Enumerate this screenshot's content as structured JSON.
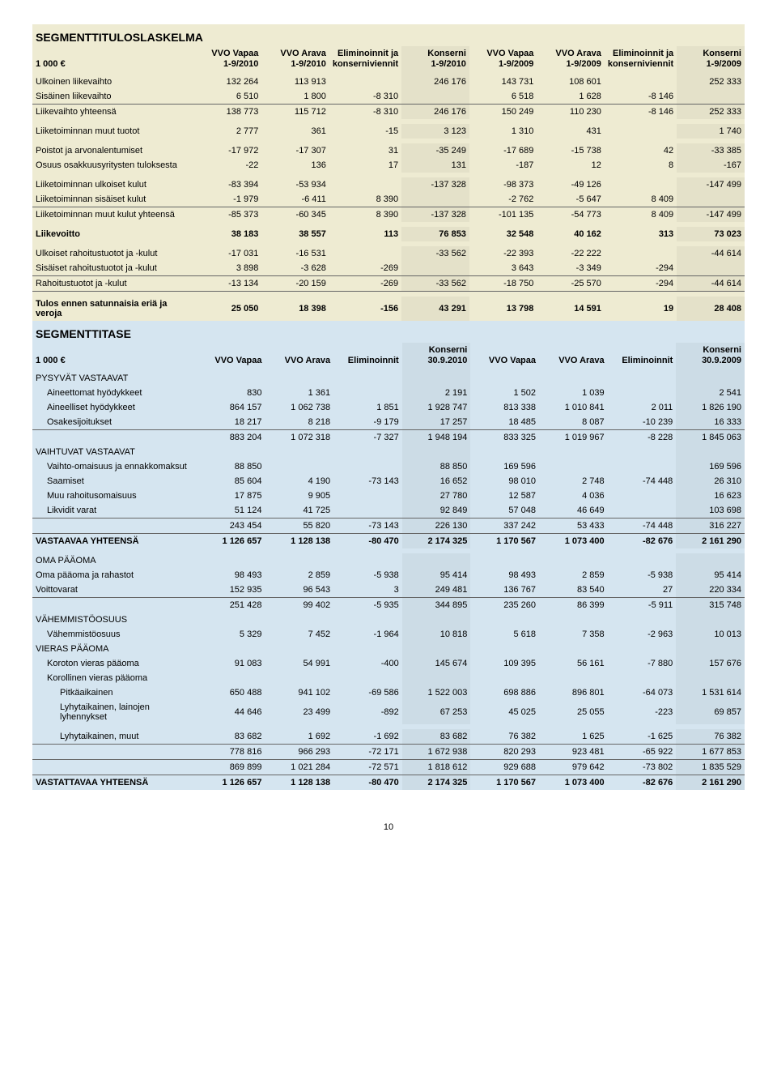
{
  "pageNumber": "10",
  "section1": {
    "title": "SEGMENTTITULOSLASKELMA",
    "unit": "1 000 €",
    "headers": [
      "VVO Vapaa\n1-9/2010",
      "VVO Arava\n1-9/2010",
      "Eliminoinnit ja\nkonserniviennit",
      "Konserni\n1-9/2010",
      "VVO Vapaa\n1-9/2009",
      "VVO Arava\n1-9/2009",
      "Eliminoinnit ja\nkonserniviennit",
      "Konserni\n1-9/2009"
    ],
    "rows": [
      {
        "label": "Ulkoinen liikevaihto",
        "cells": [
          "132 264",
          "113 913",
          "",
          "246 176",
          "143 731",
          "108 601",
          "",
          "252 333"
        ]
      },
      {
        "label": "Sisäinen liikevaihto",
        "cells": [
          "6 510",
          "1 800",
          "-8 310",
          "",
          "6 518",
          "1 628",
          "-8 146",
          ""
        ],
        "sep": true
      },
      {
        "label": "Liikevaihto yhteensä",
        "cells": [
          "138 773",
          "115 712",
          "-8 310",
          "246 176",
          "150 249",
          "110 230",
          "-8 146",
          "252 333"
        ]
      },
      {
        "space": true
      },
      {
        "label": "Liiketoiminnan muut tuotot",
        "cells": [
          "2 777",
          "361",
          "-15",
          "3 123",
          "1 310",
          "431",
          "",
          "1 740"
        ]
      },
      {
        "space": true
      },
      {
        "label": "Poistot ja arvonalentumiset",
        "cells": [
          "-17 972",
          "-17 307",
          "31",
          "-35 249",
          "-17 689",
          "-15 738",
          "42",
          "-33 385"
        ]
      },
      {
        "label": "Osuus osakkuusyritysten tuloksesta",
        "cells": [
          "-22",
          "136",
          "17",
          "131",
          "-187",
          "12",
          "8",
          "-167"
        ]
      },
      {
        "space": true
      },
      {
        "label": "Liiketoiminnan ulkoiset kulut",
        "cells": [
          "-83 394",
          "-53 934",
          "",
          "-137 328",
          "-98 373",
          "-49 126",
          "",
          "-147 499"
        ]
      },
      {
        "label": "Liiketoiminnan sisäiset kulut",
        "cells": [
          "-1 979",
          "-6 411",
          "8 390",
          "",
          "-2 762",
          "-5 647",
          "8 409",
          ""
        ],
        "sep": true
      },
      {
        "label": "Liiketoiminnan muut kulut yhteensä",
        "cells": [
          "-85 373",
          "-60 345",
          "8 390",
          "-137 328",
          "-101 135",
          "-54 773",
          "8 409",
          "-147 499"
        ]
      },
      {
        "space": true
      },
      {
        "label": "Liikevoitto",
        "cells": [
          "38 183",
          "38 557",
          "113",
          "76 853",
          "32 548",
          "40 162",
          "313",
          "73 023"
        ],
        "bold": true
      },
      {
        "space": true
      },
      {
        "label": "Ulkoiset rahoitustuotot ja -kulut",
        "cells": [
          "-17 031",
          "-16 531",
          "",
          "-33 562",
          "-22 393",
          "-22 222",
          "",
          "-44 614"
        ]
      },
      {
        "label": "Sisäiset rahoitustuotot ja -kulut",
        "cells": [
          "3 898",
          "-3 628",
          "-269",
          "",
          "3 643",
          "-3 349",
          "-294",
          ""
        ],
        "sep": true
      },
      {
        "label": "Rahoitustuotot ja -kulut",
        "cells": [
          "-13 134",
          "-20 159",
          "-269",
          "-33 562",
          "-18 750",
          "-25 570",
          "-294",
          "-44 614"
        ],
        "sep": true
      },
      {
        "space": true
      },
      {
        "label": "Tulos ennen satunnaisia eriä ja veroja",
        "cells": [
          "25 050",
          "18 398",
          "-156",
          "43 291",
          "13 798",
          "14 591",
          "19",
          "28 408"
        ],
        "bold": true
      }
    ]
  },
  "section2": {
    "title": "SEGMENTTITASE",
    "unit": "1 000 €",
    "headers": [
      "VVO Vapaa",
      "VVO Arava",
      "Eliminoinnit",
      "Konserni\n30.9.2010",
      "VVO Vapaa",
      "VVO Arava",
      "Eliminoinnit",
      "Konserni\n30.9.2009"
    ],
    "rows": [
      {
        "label": "PYSYVÄT VASTAAVAT",
        "group": true
      },
      {
        "label": "Aineettomat hyödykkeet",
        "cells": [
          "830",
          "1 361",
          "",
          "2 191",
          "1 502",
          "1 039",
          "",
          "2 541"
        ],
        "indent": true
      },
      {
        "label": "Aineelliset hyödykkeet",
        "cells": [
          "864 157",
          "1 062 738",
          "1 851",
          "1 928 747",
          "813 338",
          "1 010 841",
          "2 011",
          "1 826 190"
        ],
        "indent": true
      },
      {
        "label": "Osakesijoitukset",
        "cells": [
          "18 217",
          "8 218",
          "-9 179",
          "17 257",
          "18 485",
          "8 087",
          "-10 239",
          "16 333"
        ],
        "indent": true,
        "sep": true
      },
      {
        "label": "",
        "cells": [
          "883 204",
          "1 072 318",
          "-7 327",
          "1 948 194",
          "833 325",
          "1 019 967",
          "-8 228",
          "1 845 063"
        ]
      },
      {
        "label": "VAIHTUVAT VASTAAVAT",
        "group": true
      },
      {
        "label": "Vaihto-omaisuus ja ennakkomaksut",
        "cells": [
          "88 850",
          "",
          "",
          "88 850",
          "169 596",
          "",
          "",
          "169 596"
        ],
        "indent": true
      },
      {
        "label": "Saamiset",
        "cells": [
          "85 604",
          "4 190",
          "-73 143",
          "16 652",
          "98 010",
          "2 748",
          "-74 448",
          "26 310"
        ],
        "indent": true
      },
      {
        "label": "Muu rahoitusomaisuus",
        "cells": [
          "17 875",
          "9 905",
          "",
          "27 780",
          "12 587",
          "4 036",
          "",
          "16 623"
        ],
        "indent": true
      },
      {
        "label": "Likvidit varat",
        "cells": [
          "51 124",
          "41 725",
          "",
          "92 849",
          "57 048",
          "46 649",
          "",
          "103 698"
        ],
        "indent": true,
        "sep": true
      },
      {
        "label": "",
        "cells": [
          "243 454",
          "55 820",
          "-73 143",
          "226 130",
          "337 242",
          "53 433",
          "-74 448",
          "316 227"
        ],
        "sep": true
      },
      {
        "label": "VASTAAVAA YHTEENSÄ",
        "cells": [
          "1 126 657",
          "1 128 138",
          "-80 470",
          "2 174 325",
          "1 170 567",
          "1 073 400",
          "-82 676",
          "2 161 290"
        ],
        "bold": true
      },
      {
        "space": true
      },
      {
        "label": "OMA PÄÄOMA",
        "group": true
      },
      {
        "label": "Oma pääoma ja rahastot",
        "cells": [
          "98 493",
          "2 859",
          "-5 938",
          "95 414",
          "98 493",
          "2 859",
          "-5 938",
          "95 414"
        ]
      },
      {
        "label": "Voittovarat",
        "cells": [
          "152 935",
          "96 543",
          "3",
          "249 481",
          "136 767",
          "83 540",
          "27",
          "220 334"
        ],
        "sep": true
      },
      {
        "label": "",
        "cells": [
          "251 428",
          "99 402",
          "-5 935",
          "344 895",
          "235 260",
          "86 399",
          "-5 911",
          "315 748"
        ]
      },
      {
        "label": "VÄHEMMISTÖOSUUS",
        "group": true
      },
      {
        "label": "Vähemmistöosuus",
        "cells": [
          "5 329",
          "7 452",
          "-1 964",
          "10 818",
          "5 618",
          "7 358",
          "-2 963",
          "10 013"
        ],
        "indent": true
      },
      {
        "label": "VIERAS PÄÄOMA",
        "group": true
      },
      {
        "label": "Koroton vieras pääoma",
        "cells": [
          "91 083",
          "54 991",
          "-400",
          "145 674",
          "109 395",
          "56 161",
          "-7 880",
          "157 676"
        ],
        "indent": true
      },
      {
        "label": "Korollinen vieras pääoma",
        "cells": [
          "",
          "",
          "",
          "",
          "",
          "",
          "",
          ""
        ],
        "indent": true
      },
      {
        "label": "Pitkäaikainen",
        "cells": [
          "650 488",
          "941 102",
          "-69 586",
          "1 522 003",
          "698 886",
          "896 801",
          "-64 073",
          "1 531 614"
        ],
        "indent": true,
        "indent2": true
      },
      {
        "label": "Lyhytaikainen, lainojen lyhennykset",
        "cells": [
          "44 646",
          "23 499",
          "-892",
          "67 253",
          "45 025",
          "25 055",
          "-223",
          "69 857"
        ],
        "indent": true,
        "indent2": true
      },
      {
        "space": true
      },
      {
        "label": "Lyhytaikainen, muut",
        "cells": [
          "83 682",
          "1 692",
          "-1 692",
          "83 682",
          "76 382",
          "1 625",
          "-1 625",
          "76 382"
        ],
        "indent": true,
        "indent2": true,
        "sep": true
      },
      {
        "label": "",
        "cells": [
          "778 816",
          "966 293",
          "-72 171",
          "1 672 938",
          "820 293",
          "923 481",
          "-65 922",
          "1 677 853"
        ],
        "sep": true
      },
      {
        "label": "",
        "cells": [
          "869 899",
          "1 021 284",
          "-72 571",
          "1 818 612",
          "929 688",
          "979 642",
          "-73 802",
          "1 835 529"
        ],
        "sep": true
      },
      {
        "label": "VASTATTAVAA YHTEENSÄ",
        "cells": [
          "1 126 657",
          "1 128 138",
          "-80 470",
          "2 174 325",
          "1 170 567",
          "1 073 400",
          "-82 676",
          "2 161 290"
        ],
        "bold": true
      }
    ]
  }
}
